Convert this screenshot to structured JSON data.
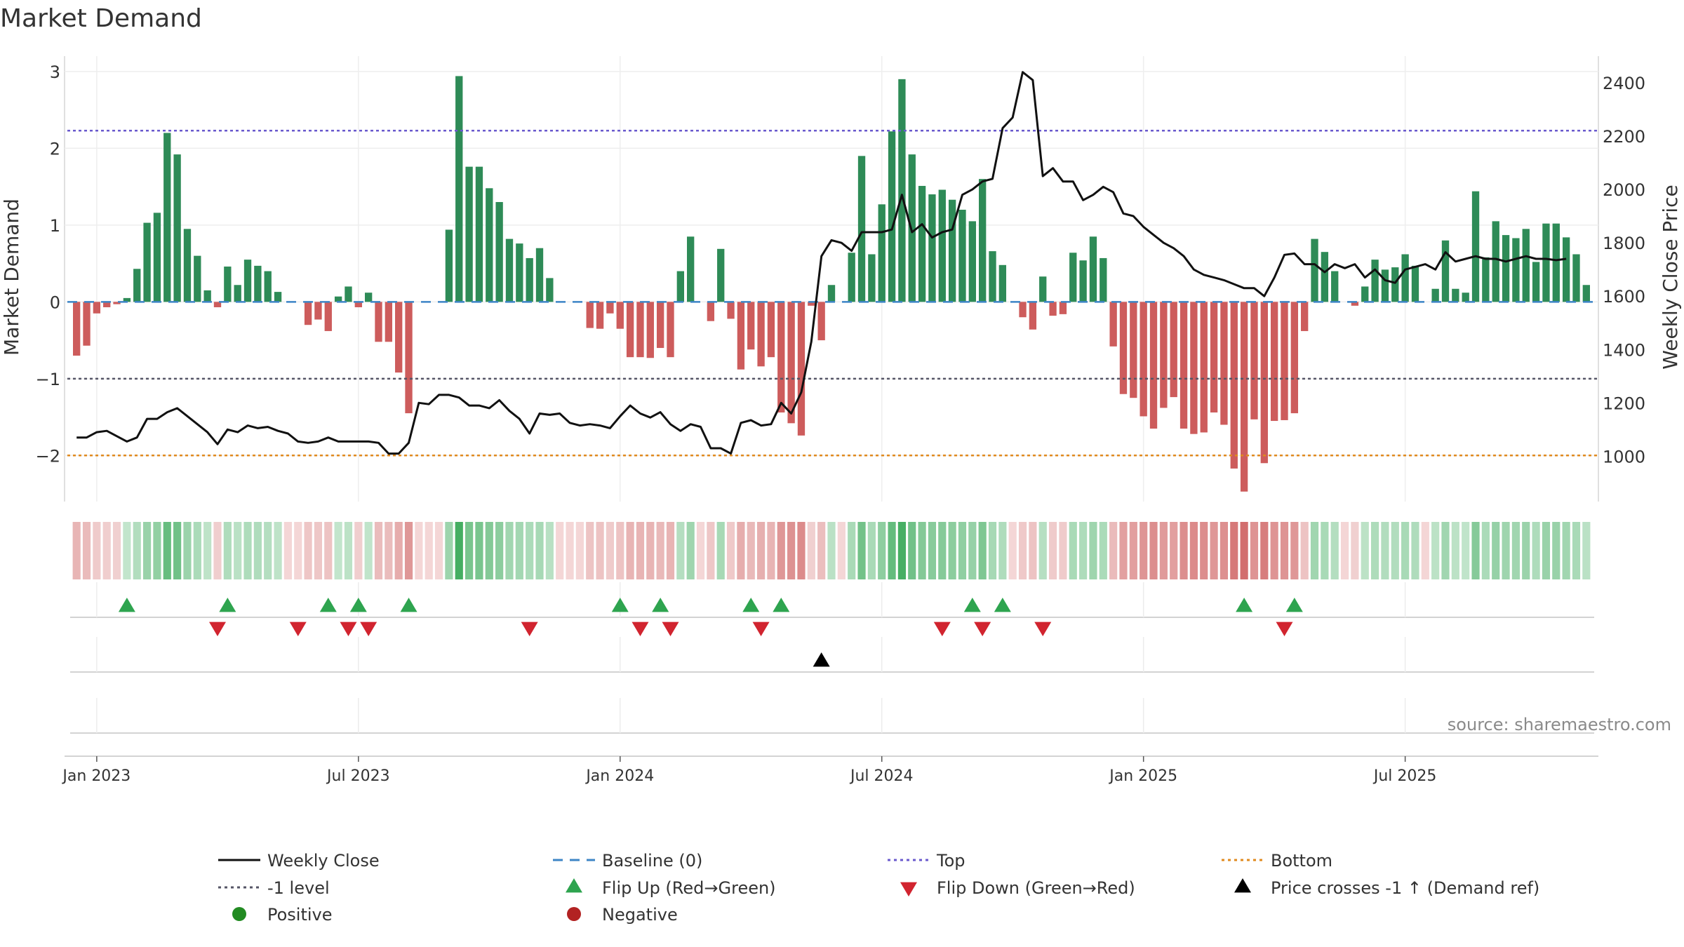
{
  "chart_data": {
    "type": "bar",
    "title": "Market Demand",
    "ylabel_left": "Market Demand",
    "ylabel_right": "Weekly Close Price",
    "ylim_left": [
      -2.6,
      3.2
    ],
    "ylim_right": [
      830,
      2500
    ],
    "left_ticks": [
      {
        "v": 3,
        "label": "3"
      },
      {
        "v": 2,
        "label": "2"
      },
      {
        "v": 1,
        "label": "1"
      },
      {
        "v": 0,
        "label": "0"
      },
      {
        "v": -1,
        "label": "−1"
      },
      {
        "v": -2,
        "label": "−2"
      }
    ],
    "right_ticks": [
      {
        "v": 2400,
        "label": "2400"
      },
      {
        "v": 2200,
        "label": "2200"
      },
      {
        "v": 2000,
        "label": "2000"
      },
      {
        "v": 1800,
        "label": "1800"
      },
      {
        "v": 1600,
        "label": "1600"
      },
      {
        "v": 1400,
        "label": "1400"
      },
      {
        "v": 1200,
        "label": "1200"
      },
      {
        "v": 1000,
        "label": "1000"
      }
    ],
    "x_ticks": [
      {
        "week": 2,
        "label": "Jan 2023"
      },
      {
        "week": 28,
        "label": "Jul 2023"
      },
      {
        "week": 54,
        "label": "Jan 2024"
      },
      {
        "week": 80,
        "label": "Jul 2024"
      },
      {
        "week": 106,
        "label": "Jan 2025"
      },
      {
        "week": 132,
        "label": "Jul 2025"
      }
    ],
    "levels": {
      "top": 2.23,
      "minus1": -1,
      "bottom": -2,
      "baseline": 0
    },
    "demand": [
      -0.7,
      -0.57,
      -0.15,
      -0.07,
      -0.03,
      0.05,
      0.43,
      1.03,
      1.16,
      2.2,
      1.92,
      0.95,
      0.6,
      0.15,
      -0.07,
      0.46,
      0.22,
      0.55,
      0.47,
      0.4,
      0.13,
      0.0,
      0.0,
      -0.3,
      -0.23,
      -0.38,
      0.07,
      0.2,
      -0.07,
      0.12,
      -0.52,
      -0.52,
      -0.92,
      -1.45,
      0.0,
      0.0,
      0.0,
      0.94,
      2.94,
      1.76,
      1.76,
      1.48,
      1.3,
      0.82,
      0.76,
      0.57,
      0.7,
      0.31,
      0.0,
      0.0,
      0.0,
      -0.34,
      -0.35,
      -0.15,
      -0.35,
      -0.72,
      -0.72,
      -0.73,
      -0.6,
      -0.72,
      0.4,
      0.85,
      0.0,
      -0.25,
      0.69,
      -0.22,
      -0.88,
      -0.62,
      -0.84,
      -0.72,
      -1.44,
      -1.58,
      -1.74,
      -0.05,
      -0.5,
      0.22,
      0.0,
      0.64,
      1.9,
      0.62,
      1.27,
      2.22,
      2.9,
      1.92,
      1.51,
      1.4,
      1.46,
      1.33,
      1.2,
      1.05,
      1.6,
      0.66,
      0.48,
      0.0,
      -0.2,
      -0.36,
      0.33,
      -0.18,
      -0.16,
      0.64,
      0.54,
      0.85,
      0.57,
      -0.58,
      -1.2,
      -1.25,
      -1.49,
      -1.65,
      -1.38,
      -1.24,
      -1.65,
      -1.72,
      -1.7,
      -1.44,
      -1.6,
      -2.17,
      -2.47,
      -1.53,
      -2.1,
      -1.55,
      -1.54,
      -1.45,
      -0.38,
      0.82,
      0.65,
      0.4,
      0.0,
      -0.05,
      0.2,
      0.55,
      0.42,
      0.45,
      0.62,
      0.47,
      0.0,
      0.17,
      0.8,
      0.17,
      0.12,
      1.44,
      0.58,
      1.05,
      0.87,
      0.83,
      0.95,
      0.52,
      1.02,
      1.02,
      0.84,
      0.62,
      0.22
    ],
    "price": [
      1070,
      1070,
      1090,
      1095,
      1075,
      1055,
      1070,
      1140,
      1140,
      1165,
      1180,
      1150,
      1120,
      1090,
      1045,
      1100,
      1090,
      1115,
      1105,
      1110,
      1095,
      1085,
      1055,
      1050,
      1055,
      1070,
      1055,
      1055,
      1055,
      1055,
      1050,
      1010,
      1010,
      1050,
      1200,
      1195,
      1230,
      1230,
      1220,
      1190,
      1190,
      1180,
      1210,
      1170,
      1140,
      1085,
      1160,
      1155,
      1160,
      1125,
      1115,
      1120,
      1115,
      1105,
      1150,
      1190,
      1160,
      1145,
      1165,
      1120,
      1095,
      1120,
      1110,
      1030,
      1030,
      1010,
      1125,
      1135,
      1115,
      1120,
      1200,
      1160,
      1240,
      1430,
      1750,
      1810,
      1800,
      1770,
      1840,
      1840,
      1840,
      1850,
      1980,
      1840,
      1870,
      1820,
      1840,
      1850,
      1980,
      2000,
      2030,
      2040,
      2230,
      2270,
      2440,
      2410,
      2050,
      2080,
      2030,
      2030,
      1960,
      1980,
      2010,
      1990,
      1910,
      1900,
      1860,
      1830,
      1800,
      1780,
      1750,
      1700,
      1680,
      1670,
      1660,
      1645,
      1630,
      1630,
      1600,
      1670,
      1755,
      1760,
      1720,
      1720,
      1690,
      1720,
      1705,
      1720,
      1670,
      1700,
      1660,
      1650,
      1700,
      1710,
      1720,
      1700,
      1765,
      1730,
      1740,
      1750,
      1740,
      1740,
      1730,
      1740,
      1750,
      1740,
      1740,
      1735,
      1740
    ],
    "heat_strip": "weekly demand color intensity strip",
    "flip_up_weeks": [
      5,
      15,
      25,
      28,
      33,
      54,
      58,
      67,
      70,
      89,
      92,
      116,
      121
    ],
    "flip_down_weeks": [
      14,
      22,
      27,
      29,
      45,
      56,
      59,
      68,
      86,
      90,
      96,
      120
    ],
    "price_cross_weeks": [
      74
    ],
    "legend": [
      {
        "key": "weekly-close",
        "label": "Weekly Close",
        "shape": "line",
        "color": "#111111"
      },
      {
        "key": "baseline",
        "label": "Baseline (0)",
        "shape": "dash",
        "color": "#3d85c6"
      },
      {
        "key": "top",
        "label": "Top",
        "shape": "dot",
        "color": "#6a5acd"
      },
      {
        "key": "bottom",
        "label": "Bottom",
        "shape": "dot",
        "color": "#e08a1e"
      },
      {
        "key": "minus1",
        "label": "-1 level",
        "shape": "dot",
        "color": "#555566"
      },
      {
        "key": "flip-up",
        "label": "Flip Up (Red→Green)",
        "shape": "tri-up",
        "color": "#2ea44f"
      },
      {
        "key": "flip-down",
        "label": "Flip Down (Green→Red)",
        "shape": "tri-down",
        "color": "#d1242f"
      },
      {
        "key": "price-cross",
        "label": "Price crosses -1 ↑ (Demand ref)",
        "shape": "tri-up",
        "color": "#000000"
      },
      {
        "key": "positive",
        "label": "Positive",
        "shape": "circle",
        "color": "#228b22"
      },
      {
        "key": "negative",
        "label": "Negative",
        "shape": "circle",
        "color": "#b22222"
      }
    ],
    "source": "source: sharemaestro.com",
    "colors": {
      "pos_bar": "#2e8b57",
      "neg_bar": "#cd5c5c",
      "price_line": "#111111",
      "top": "#6a5acd",
      "bottom": "#e08a1e",
      "minus1": "#555566",
      "baseline": "#3d85c6",
      "flip_up": "#2ea44f",
      "flip_down": "#d1242f",
      "cross": "#000000"
    }
  }
}
